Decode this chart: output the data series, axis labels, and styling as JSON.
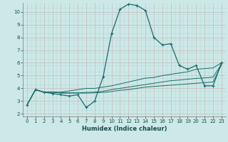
{
  "xlabel": "Humidex (Indice chaleur)",
  "bg_color": "#cce9e7",
  "line_color": "#1a6b6b",
  "grid_major_color": "#c8b8b8",
  "grid_minor_color": "#b8d8d6",
  "xlim": [
    -0.5,
    23.5
  ],
  "ylim": [
    1.8,
    10.7
  ],
  "xticks": [
    0,
    1,
    2,
    3,
    4,
    5,
    6,
    7,
    8,
    9,
    10,
    11,
    12,
    13,
    14,
    15,
    16,
    17,
    18,
    19,
    20,
    21,
    22,
    23
  ],
  "yticks": [
    2,
    3,
    4,
    5,
    6,
    7,
    8,
    9,
    10
  ],
  "series": [
    [
      [
        0,
        2.7
      ],
      [
        1,
        3.9
      ],
      [
        2,
        3.7
      ],
      [
        3,
        3.6
      ],
      [
        4,
        3.5
      ],
      [
        5,
        3.4
      ],
      [
        6,
        3.5
      ],
      [
        7,
        2.5
      ],
      [
        8,
        3.0
      ],
      [
        9,
        4.9
      ],
      [
        10,
        8.3
      ],
      [
        11,
        10.2
      ],
      [
        12,
        10.6
      ],
      [
        13,
        10.5
      ],
      [
        14,
        10.1
      ],
      [
        15,
        8.0
      ],
      [
        16,
        7.4
      ],
      [
        17,
        7.5
      ],
      [
        18,
        5.8
      ],
      [
        19,
        5.5
      ],
      [
        20,
        5.8
      ],
      [
        21,
        4.2
      ],
      [
        22,
        4.2
      ],
      [
        23,
        6.0
      ]
    ],
    [
      [
        0,
        2.7
      ],
      [
        1,
        3.9
      ],
      [
        2,
        3.7
      ],
      [
        3,
        3.7
      ],
      [
        4,
        3.7
      ],
      [
        5,
        3.8
      ],
      [
        6,
        3.9
      ],
      [
        7,
        4.0
      ],
      [
        8,
        4.0
      ],
      [
        9,
        4.1
      ],
      [
        10,
        4.2
      ],
      [
        11,
        4.35
      ],
      [
        12,
        4.5
      ],
      [
        13,
        4.65
      ],
      [
        14,
        4.8
      ],
      [
        15,
        4.85
      ],
      [
        16,
        5.0
      ],
      [
        17,
        5.1
      ],
      [
        18,
        5.2
      ],
      [
        19,
        5.3
      ],
      [
        20,
        5.5
      ],
      [
        21,
        5.55
      ],
      [
        22,
        5.6
      ],
      [
        23,
        6.0
      ]
    ],
    [
      [
        0,
        2.7
      ],
      [
        1,
        3.9
      ],
      [
        2,
        3.7
      ],
      [
        3,
        3.7
      ],
      [
        4,
        3.65
      ],
      [
        5,
        3.65
      ],
      [
        6,
        3.65
      ],
      [
        7,
        3.68
      ],
      [
        8,
        3.7
      ],
      [
        9,
        3.78
      ],
      [
        10,
        3.9
      ],
      [
        11,
        4.0
      ],
      [
        12,
        4.1
      ],
      [
        13,
        4.2
      ],
      [
        14,
        4.3
      ],
      [
        15,
        4.4
      ],
      [
        16,
        4.5
      ],
      [
        17,
        4.6
      ],
      [
        18,
        4.65
      ],
      [
        19,
        4.72
      ],
      [
        20,
        4.78
      ],
      [
        21,
        4.82
      ],
      [
        22,
        4.88
      ],
      [
        23,
        5.9
      ]
    ],
    [
      [
        0,
        2.7
      ],
      [
        1,
        3.9
      ],
      [
        2,
        3.7
      ],
      [
        3,
        3.7
      ],
      [
        4,
        3.63
      ],
      [
        5,
        3.63
      ],
      [
        6,
        3.63
      ],
      [
        7,
        3.63
      ],
      [
        8,
        3.65
      ],
      [
        9,
        3.68
      ],
      [
        10,
        3.75
      ],
      [
        11,
        3.85
      ],
      [
        12,
        3.9
      ],
      [
        13,
        4.0
      ],
      [
        14,
        4.1
      ],
      [
        15,
        4.15
      ],
      [
        16,
        4.2
      ],
      [
        17,
        4.25
      ],
      [
        18,
        4.3
      ],
      [
        19,
        4.35
      ],
      [
        20,
        4.4
      ],
      [
        21,
        4.45
      ],
      [
        22,
        4.5
      ],
      [
        23,
        5.85
      ]
    ]
  ]
}
